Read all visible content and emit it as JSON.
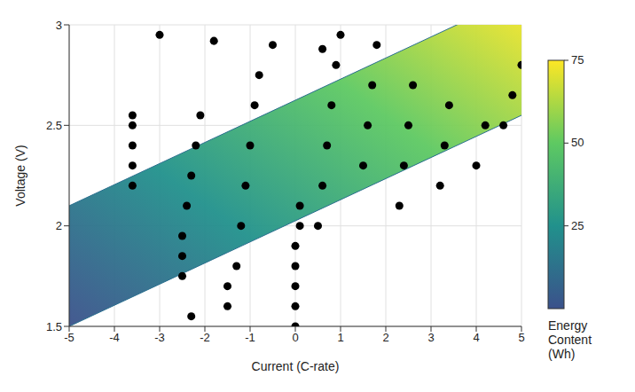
{
  "chart_data": {
    "type": "scatter",
    "x_label": "Current (C-rate)",
    "y_label": "Voltage (V)",
    "xlim": [
      -5,
      5
    ],
    "xticks": [
      -5,
      -4,
      -3,
      -2,
      -1,
      0,
      1,
      2,
      3,
      4,
      5
    ],
    "ylim": [
      1.5,
      3
    ],
    "yticks": [
      1.5,
      2,
      2.5,
      3
    ],
    "grid": true,
    "color": "#000000",
    "marker": "circle",
    "x": [
      -3.6,
      -3.6,
      -3.6,
      -3.6,
      -3.6,
      -3.0,
      -1.8,
      -0.5,
      0.6,
      -2.5,
      -2.5,
      -2.5,
      -2.4,
      -2.3,
      -2.2,
      -2.1,
      -1.3,
      -1.2,
      -1.1,
      -1.0,
      -0.9,
      -0.8,
      0,
      0,
      0,
      0,
      0,
      0.1,
      0.1,
      0.5,
      0.6,
      0.7,
      0.8,
      0.9,
      1.0,
      1.5,
      1.6,
      1.7,
      1.8,
      2.3,
      2.4,
      2.5,
      2.6,
      3.2,
      3.3,
      3.4,
      4.0,
      4.2,
      4.6,
      4.8,
      5.0,
      -1.5,
      -1.5,
      -2.3
    ],
    "values": [
      2.2,
      2.3,
      2.4,
      2.5,
      2.55,
      2.95,
      2.92,
      2.9,
      2.88,
      1.75,
      1.85,
      1.95,
      2.1,
      2.25,
      2.4,
      2.55,
      1.8,
      2.0,
      2.2,
      2.4,
      2.6,
      2.75,
      1.5,
      1.6,
      1.7,
      1.8,
      1.9,
      2.0,
      2.1,
      2.0,
      2.2,
      2.4,
      2.6,
      2.8,
      2.95,
      2.3,
      2.5,
      2.7,
      2.9,
      2.1,
      2.3,
      2.5,
      2.7,
      2.2,
      2.4,
      2.6,
      2.3,
      2.5,
      2.5,
      2.65,
      2.8,
      1.6,
      1.7,
      1.55
    ],
    "surface": {
      "x": [
        -5,
        5
      ],
      "low": [
        1.5,
        2.55
      ],
      "high": [
        2.1,
        3.15
      ],
      "colors": [
        "#3b518b",
        "#21918c",
        "#5ec962",
        "#fde725"
      ]
    },
    "color_bar": {
      "label": "Energy Content (Wh)",
      "range": [
        0,
        75
      ],
      "ticks": [
        25,
        50,
        75
      ]
    }
  }
}
